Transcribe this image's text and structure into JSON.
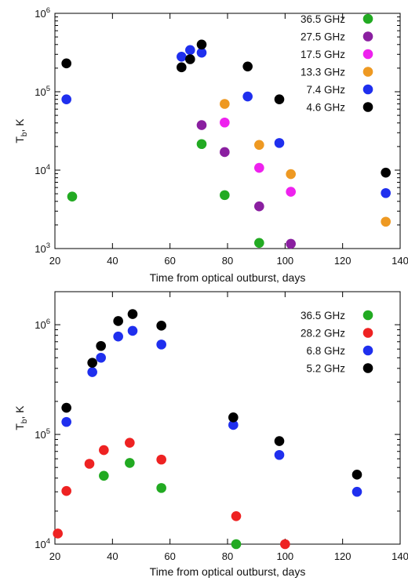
{
  "chart_data": [
    {
      "type": "scatter",
      "title": "",
      "xlabel": "Time from optical outburst, days",
      "ylabel_main": "T",
      "ylabel_sub": "b",
      "ylabel_unit": ", K",
      "xlim": [
        20,
        140
      ],
      "ylim": [
        1000,
        1000000
      ],
      "yscale": "log",
      "x_ticks": [
        20,
        40,
        60,
        80,
        100,
        120,
        140
      ],
      "y_ticks": [
        {
          "base": "10",
          "exp": "3",
          "value": 1000
        },
        {
          "base": "10",
          "exp": "4",
          "value": 10000
        },
        {
          "base": "10",
          "exp": "5",
          "value": 100000
        },
        {
          "base": "10",
          "exp": "6",
          "value": 1000000
        }
      ],
      "grid": false,
      "legend_position": "top-right",
      "series": [
        {
          "name": "36.5 GHz",
          "color": "#22aa22",
          "points": [
            [
              26,
              4600
            ],
            [
              71,
              21500
            ],
            [
              79,
              4800
            ],
            [
              91,
              1180
            ]
          ]
        },
        {
          "name": "27.5 GHz",
          "color": "#8a1fa0",
          "points": [
            [
              71,
              37500
            ],
            [
              79,
              17000
            ],
            [
              91,
              3450
            ],
            [
              102,
              1150
            ]
          ]
        },
        {
          "name": "17.5 GHz",
          "color": "#ee22ee",
          "points": [
            [
              79,
              40500
            ],
            [
              91,
              10700
            ],
            [
              102,
              5300
            ]
          ]
        },
        {
          "name": "13.3 GHz",
          "color": "#ee9922",
          "points": [
            [
              79,
              70000
            ],
            [
              91,
              21000
            ],
            [
              102,
              8900
            ],
            [
              135,
              2200
            ]
          ]
        },
        {
          "name": "7.4 GHz",
          "color": "#1f2fee",
          "points": [
            [
              24,
              80000
            ],
            [
              64,
              280000
            ],
            [
              67,
              340000
            ],
            [
              71,
              315000
            ],
            [
              87,
              87000
            ],
            [
              98,
              22200
            ],
            [
              135,
              5100
            ]
          ]
        },
        {
          "name": "4.6 GHz",
          "color": "#000000",
          "points": [
            [
              24,
              230000
            ],
            [
              64,
              205000
            ],
            [
              67,
              260000
            ],
            [
              71,
              400000
            ],
            [
              87,
              210000
            ],
            [
              98,
              80000
            ],
            [
              135,
              9300
            ]
          ]
        }
      ]
    },
    {
      "type": "scatter",
      "title": "",
      "xlabel": "Time from optical outburst, days",
      "ylabel_main": "T",
      "ylabel_sub": "b",
      "ylabel_unit": ", K",
      "xlim": [
        20,
        140
      ],
      "ylim": [
        10000,
        2000000
      ],
      "yscale": "log",
      "x_ticks": [
        20,
        40,
        60,
        80,
        100,
        120,
        140
      ],
      "y_ticks": [
        {
          "base": "10",
          "exp": "4",
          "value": 10000
        },
        {
          "base": "10",
          "exp": "5",
          "value": 100000
        },
        {
          "base": "10",
          "exp": "6",
          "value": 1000000
        }
      ],
      "grid": false,
      "legend_position": "top-right",
      "series": [
        {
          "name": "36.5 GHz",
          "color": "#22aa22",
          "points": [
            [
              37,
              42000
            ],
            [
              46,
              55000
            ],
            [
              57,
              32500
            ],
            [
              83,
              10000
            ]
          ]
        },
        {
          "name": "28.2 GHz",
          "color": "#ee2222",
          "points": [
            [
              21,
              12500
            ],
            [
              24,
              30500
            ],
            [
              32,
              54000
            ],
            [
              37,
              72000
            ],
            [
              46,
              84000
            ],
            [
              57,
              59000
            ],
            [
              83,
              18000
            ],
            [
              100,
              10000
            ]
          ]
        },
        {
          "name": "6.8 GHz",
          "color": "#1f2fee",
          "points": [
            [
              24,
              130000
            ],
            [
              33,
              370000
            ],
            [
              36,
              500000
            ],
            [
              42,
              780000
            ],
            [
              47,
              880000
            ],
            [
              57,
              660000
            ],
            [
              82,
              122000
            ],
            [
              98,
              65000
            ],
            [
              125,
              30000
            ]
          ]
        },
        {
          "name": "5.2 GHz",
          "color": "#000000",
          "points": [
            [
              24,
              175000
            ],
            [
              33,
              450000
            ],
            [
              36,
              640000
            ],
            [
              42,
              1080000
            ],
            [
              47,
              1250000
            ],
            [
              57,
              980000
            ],
            [
              82,
              143000
            ],
            [
              98,
              87000
            ],
            [
              125,
              43000
            ]
          ]
        }
      ]
    }
  ]
}
